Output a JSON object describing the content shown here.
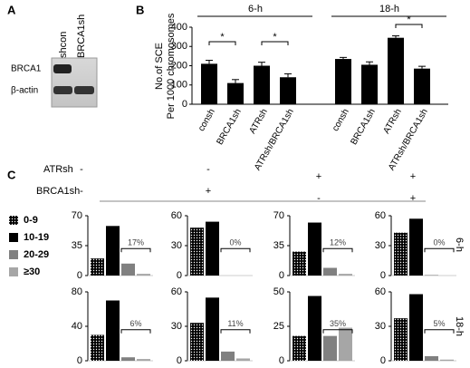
{
  "panel_a": {
    "label": "A",
    "lanes": [
      "shcon",
      "BRCA1sh"
    ],
    "rows": [
      "BRCA1",
      "β-actin"
    ]
  },
  "panel_c": {
    "label": "C",
    "conditions": [
      {
        "name": "ATRsh",
        "signs": [
          "-",
          "-",
          "+",
          "+"
        ]
      },
      {
        "name": "BRCA1sh",
        "signs": [
          "-",
          "+",
          "-",
          "+"
        ]
      }
    ],
    "legend": [
      {
        "name": "0-9",
        "color": "#000000",
        "pattern": "dots"
      },
      {
        "name": "10-19",
        "color": "#000000"
      },
      {
        "name": "20-29",
        "color": "#808080"
      },
      {
        "name": "≥30",
        "color": "#a6a6a6"
      }
    ],
    "row_labels": [
      "6-h",
      "18-h"
    ]
  },
  "chart_data": [
    {
      "type": "bar",
      "panel": "B",
      "groups": [
        "6-h",
        "18-h"
      ],
      "ylabel": [
        "No.of SCE",
        "Per 1000 chromosomes"
      ],
      "categories": [
        "consh",
        "BRCA1sh",
        "ATRsh",
        "ATRsh/BRCA1sh",
        "consh",
        "BRCA1sh",
        "ATRsh",
        "ATRsh/BRCA1sh"
      ],
      "values": [
        210,
        110,
        200,
        140,
        235,
        205,
        345,
        185
      ],
      "errors": [
        18,
        18,
        18,
        18,
        8,
        15,
        10,
        12
      ],
      "color": "#000000",
      "ylim": [
        0,
        400
      ],
      "yticks": [
        0,
        100,
        200,
        300,
        400
      ],
      "annotations": [
        "*",
        "*",
        "*"
      ]
    },
    {
      "type": "bar",
      "values": [
        20,
        58,
        14,
        2
      ],
      "ylim": [
        0,
        70
      ],
      "yticks": [
        0,
        35,
        70
      ],
      "annotation": "17%"
    },
    {
      "type": "bar",
      "values": [
        48,
        54,
        0,
        0
      ],
      "ylim": [
        0,
        60
      ],
      "yticks": [
        0,
        30,
        60
      ],
      "annotation": "0%"
    },
    {
      "type": "bar",
      "values": [
        28,
        62,
        9,
        2
      ],
      "ylim": [
        0,
        70
      ],
      "yticks": [
        0,
        35,
        70
      ],
      "annotation": "12%"
    },
    {
      "type": "bar",
      "values": [
        43,
        57,
        0.5,
        0
      ],
      "ylim": [
        0,
        60
      ],
      "yticks": [
        0,
        30,
        60
      ],
      "annotation": "0%"
    },
    {
      "type": "bar",
      "values": [
        30,
        70,
        4,
        2
      ],
      "ylim": [
        0,
        80
      ],
      "yticks": [
        0,
        40,
        80
      ],
      "annotation": "6%"
    },
    {
      "type": "bar",
      "values": [
        33,
        55,
        8,
        2
      ],
      "ylim": [
        0,
        60
      ],
      "yticks": [
        0,
        30,
        60
      ],
      "annotation": "11%"
    },
    {
      "type": "bar",
      "values": [
        18,
        47,
        18,
        24
      ],
      "ylim": [
        0,
        50
      ],
      "yticks": [
        0,
        25,
        50
      ],
      "annotation": "35%"
    },
    {
      "type": "bar",
      "values": [
        37,
        58,
        4,
        1
      ],
      "ylim": [
        0,
        60
      ],
      "yticks": [
        0,
        30,
        60
      ],
      "annotation": "5%"
    }
  ]
}
